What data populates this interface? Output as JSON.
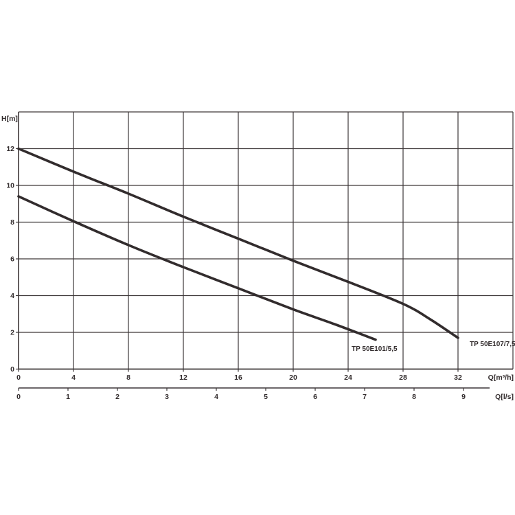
{
  "chart_data": {
    "type": "line",
    "title": "",
    "y_axis": {
      "label": "H[m]",
      "min": 0,
      "max": 14,
      "tick_step": 2,
      "tick_labels": [
        "0",
        "2",
        "4",
        "6",
        "8",
        "10",
        "12"
      ],
      "tick_values": [
        0,
        2,
        4,
        6,
        8,
        10,
        12
      ],
      "grid": true
    },
    "x_axis_primary": {
      "label": "Q[m³/h]",
      "min": 0,
      "max": 36,
      "tick_step": 4,
      "tick_labels": [
        "0",
        "4",
        "8",
        "12",
        "16",
        "20",
        "24",
        "28",
        "32"
      ],
      "tick_values": [
        0,
        4,
        8,
        12,
        16,
        20,
        24,
        28,
        32
      ],
      "grid": true
    },
    "x_axis_secondary": {
      "label": "Q[l/s]",
      "tick_labels": [
        "0",
        "1",
        "2",
        "3",
        "4",
        "5",
        "6",
        "7",
        "8",
        "9"
      ],
      "tick_values": [
        0,
        1,
        2,
        3,
        4,
        5,
        6,
        7,
        8,
        9
      ],
      "conversion_to_primary": 3.6
    },
    "series": [
      {
        "name": "TP 50E107/7,5",
        "points": [
          [
            0,
            12
          ],
          [
            4,
            10.75
          ],
          [
            8,
            9.55
          ],
          [
            12,
            8.3
          ],
          [
            16,
            7.1
          ],
          [
            20,
            5.9
          ],
          [
            24,
            4.75
          ],
          [
            28,
            3.55
          ],
          [
            30,
            2.7
          ],
          [
            32,
            1.7
          ]
        ]
      },
      {
        "name": "TP 50E101/5,5",
        "points": [
          [
            0,
            9.4
          ],
          [
            4,
            8.05
          ],
          [
            8,
            6.75
          ],
          [
            12,
            5.55
          ],
          [
            16,
            4.4
          ],
          [
            20,
            3.25
          ],
          [
            23,
            2.45
          ],
          [
            26,
            1.6
          ]
        ]
      }
    ],
    "colors": {
      "grid": "#3d3738",
      "curve": "#322c2d",
      "text": "#332d2e",
      "background": "#ffffff"
    },
    "legend_position": "curve-end-labels",
    "grid_on": true
  }
}
